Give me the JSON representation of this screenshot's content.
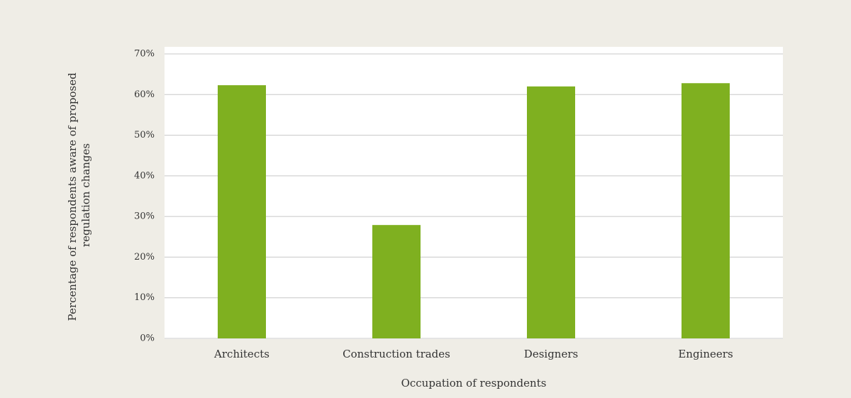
{
  "chart_data": {
    "type": "bar",
    "y_label": [
      "Percentage of respondents aware of proposed",
      "regulation changes"
    ],
    "x_label": "Occupation of respondents",
    "categories": [
      "Architects",
      "Construction trades",
      "Designers",
      "Engineers"
    ],
    "values": [
      62.3,
      27.9,
      62.0,
      62.8
    ],
    "color": "#7fb020",
    "ylim": [
      0,
      70
    ],
    "yticks": [
      {
        "value": 0,
        "label": "0%"
      },
      {
        "value": 10,
        "label": "10%"
      },
      {
        "value": 20,
        "label": "20%"
      },
      {
        "value": 30,
        "label": "30%"
      },
      {
        "value": 40,
        "label": "40%"
      },
      {
        "value": 50,
        "label": "50%"
      },
      {
        "value": 60,
        "label": "60%"
      },
      {
        "value": 70,
        "label": "70%"
      }
    ],
    "grid": true
  }
}
